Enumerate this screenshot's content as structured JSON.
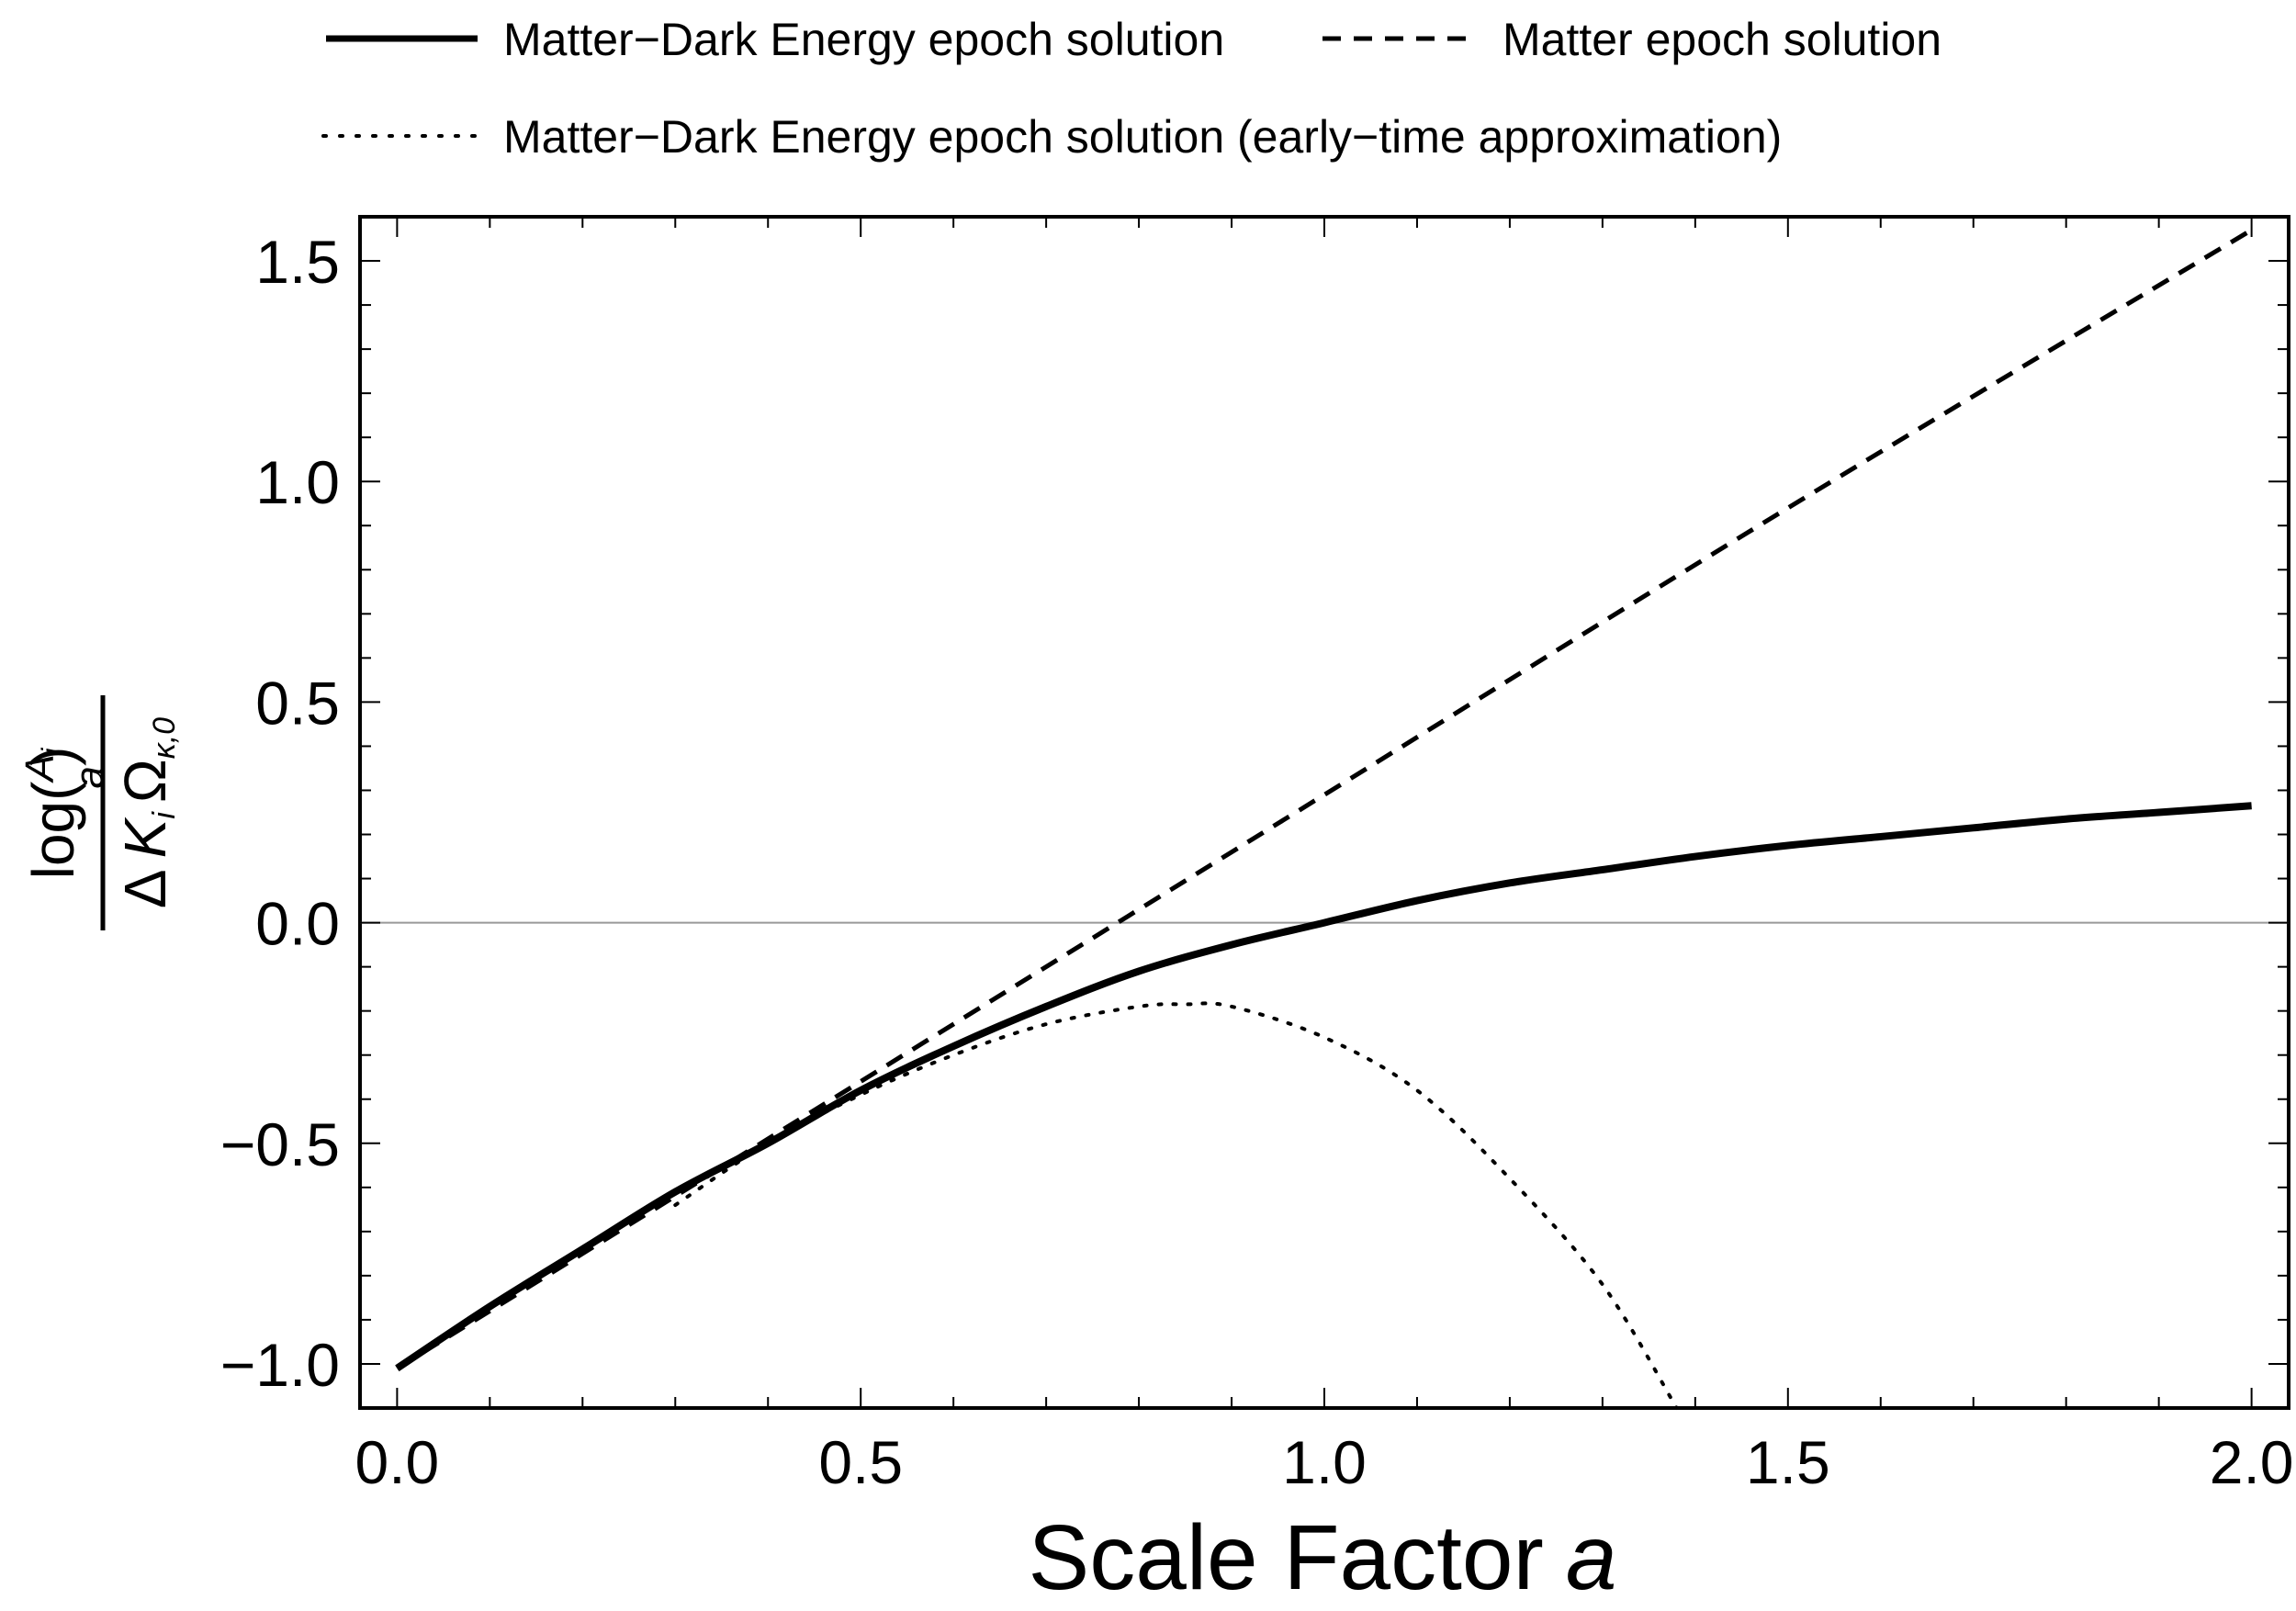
{
  "chart_data": {
    "type": "line",
    "title": "",
    "xlabel": "Scale Factor",
    "xlabel_var": "a",
    "ylabel": {
      "numerator_prefix": "log(",
      "numerator_frac_top": "A",
      "numerator_frac_top_sub": "i",
      "numerator_frac_bottom": "a",
      "numerator_suffix": ")",
      "denominator_delta": "Δ",
      "denominator_k": "K",
      "denominator_k_sub": "i",
      "denominator_omega": "Ω",
      "denominator_omega_sub": "κ,0"
    },
    "xlim": [
      -0.04,
      2.04
    ],
    "ylim": [
      -1.1,
      1.6
    ],
    "xticks": [
      0.0,
      0.5,
      1.0,
      1.5,
      2.0
    ],
    "xtick_labels": [
      "0.0",
      "0.5",
      "1.0",
      "1.5",
      "2.0"
    ],
    "yticks": [
      -1.0,
      -0.5,
      0.0,
      0.5,
      1.0,
      1.5
    ],
    "ytick_labels": [
      "−1.0",
      "−0.5",
      "0.0",
      "0.5",
      "1.0",
      "1.5"
    ],
    "zero_line": true,
    "legend_position": "top",
    "series": [
      {
        "name": "Matter−Dark Energy epoch solution",
        "style": "solid",
        "x": [
          0.0,
          0.1,
          0.2,
          0.3,
          0.4,
          0.5,
          0.6,
          0.7,
          0.8,
          0.9,
          1.0,
          1.1,
          1.2,
          1.3,
          1.4,
          1.5,
          1.6,
          1.7,
          1.8,
          1.9,
          2.0
        ],
        "y": [
          -1.01,
          -0.87,
          -0.74,
          -0.61,
          -0.5,
          -0.38,
          -0.28,
          -0.19,
          -0.11,
          -0.05,
          0.0,
          0.05,
          0.09,
          0.12,
          0.15,
          0.175,
          0.195,
          0.215,
          0.235,
          0.25,
          0.265
        ]
      },
      {
        "name": "Matter epoch solution",
        "style": "dashed",
        "x": [
          0.0,
          0.5,
          1.0,
          1.5,
          2.0
        ],
        "y": [
          -1.01,
          -0.36,
          0.29,
          0.94,
          1.57
        ]
      },
      {
        "name": "Matter−Dark Energy epoch solution (early−time approximation)",
        "style": "dotted",
        "x": [
          0.3,
          0.4,
          0.5,
          0.6,
          0.7,
          0.8,
          0.85,
          0.9,
          1.0,
          1.1,
          1.2,
          1.3,
          1.38
        ],
        "y": [
          -0.64,
          -0.5,
          -0.39,
          -0.3,
          -0.23,
          -0.19,
          -0.185,
          -0.19,
          -0.26,
          -0.38,
          -0.58,
          -0.82,
          -1.1
        ]
      }
    ]
  }
}
